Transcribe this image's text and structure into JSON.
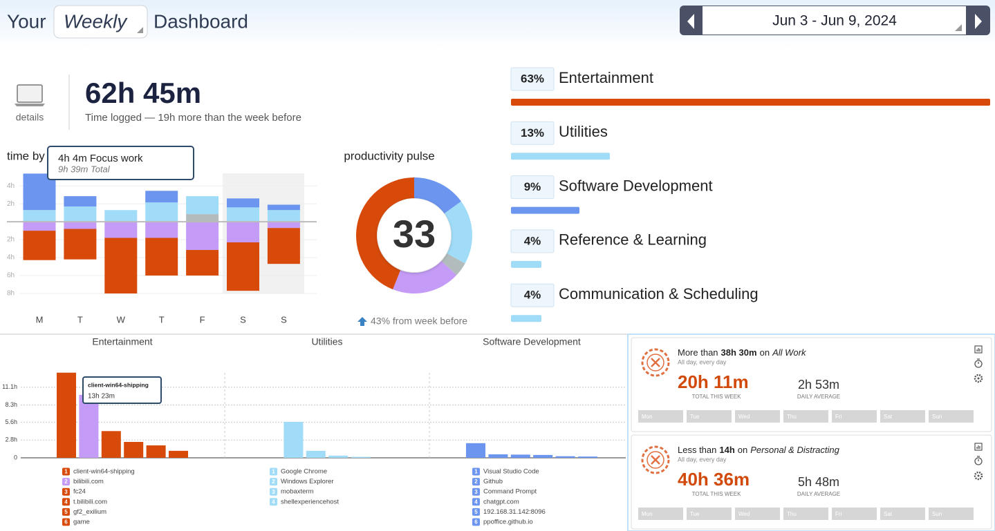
{
  "header": {
    "prefix": "Your",
    "period": "Weekly",
    "suffix": "Dashboard",
    "date_range": "Jun 3 - Jun 9, 2024"
  },
  "summary": {
    "details": "details",
    "total": "62h 45m",
    "caption": "Time logged — 19h more than the week before"
  },
  "time_by_day": {
    "title": "time by",
    "categories": [
      "M",
      "T",
      "W",
      "T",
      "F",
      "S",
      "S"
    ],
    "series": [
      {
        "color": "#b3bcbc",
        "values": [
          0,
          0,
          0,
          0,
          0.85,
          0,
          0
        ]
      },
      {
        "color": "#a0dcf8",
        "values": [
          1.3,
          1.7,
          1.3,
          2.15,
          2.0,
          1.6,
          1.3
        ]
      },
      {
        "color": "#6b95ee",
        "values": [
          4.07,
          1.15,
          0,
          1.3,
          0,
          1.0,
          0.6
        ]
      },
      {
        "color": "#c49bf6",
        "values": [
          -1.0,
          -0.8,
          -1.8,
          -1.8,
          -3.15,
          -2.3,
          -0.7
        ]
      },
      {
        "color": "#d84a0a",
        "values": [
          -3.28,
          -3.4,
          -6.2,
          -4.2,
          -2.85,
          -5.4,
          -4.0
        ]
      }
    ],
    "ylim": [
      -8,
      5.4
    ],
    "yticks": [
      {
        "value": 4,
        "label": "4h"
      },
      {
        "value": 2,
        "label": "2h"
      },
      {
        "value": -2,
        "label": "2h"
      },
      {
        "value": -4,
        "label": "4h"
      },
      {
        "value": -6,
        "label": "6h"
      },
      {
        "value": -8,
        "label": "8h"
      }
    ],
    "grid": true,
    "tooltip": {
      "title": "4h 4m Focus work",
      "subtitle": "9h 39m Total"
    }
  },
  "pulse": {
    "title": "productivity pulse",
    "value": 33,
    "values": [
      15,
      18,
      4,
      19,
      44
    ],
    "colors": [
      "#6b95ee",
      "#a0dcf8",
      "#b3bcbc",
      "#c49bf6",
      "#d84a0a"
    ],
    "change": "43% from week before"
  },
  "categories": {
    "categories": [
      "Entertainment",
      "Utilities",
      "Software Development",
      "Reference & Learning",
      "Communication & Scheduling"
    ],
    "values": [
      63,
      13,
      9,
      4,
      4
    ],
    "value_labels": [
      "63%",
      "13%",
      "9%",
      "4%",
      "4%"
    ],
    "colors": [
      "#d84a0a",
      "#a0dcf8",
      "#6b95ee",
      "#a0dcf8",
      "#a0dcf8"
    ]
  },
  "breakdown": {
    "ylim": [
      0,
      14
    ],
    "yticks": [
      {
        "value": 11.1,
        "label": "11.1h"
      },
      {
        "value": 8.3,
        "label": "8.3h"
      },
      {
        "value": 5.6,
        "label": "5.6h"
      },
      {
        "value": 2.8,
        "label": "2.8h"
      },
      0
    ],
    "panels": [
      {
        "title": "Entertainment",
        "items": [
          {
            "rank": 1,
            "name": "client-win64-shipping",
            "color": "#d84a0a",
            "value": 13.38
          },
          {
            "rank": 2,
            "name": "bilibili.com",
            "color": "#c49bf6",
            "value": 9.9
          },
          {
            "rank": 3,
            "name": "fc24",
            "color": "#d84a0a",
            "value": 4.2
          },
          {
            "rank": 4,
            "name": "t.bilibili.com",
            "color": "#d84a0a",
            "value": 2.5
          },
          {
            "rank": 5,
            "name": "gf2_exilium",
            "color": "#d84a0a",
            "value": 1.95
          },
          {
            "rank": 6,
            "name": "game",
            "color": "#d84a0a",
            "value": 1.1
          }
        ]
      },
      {
        "title": "Utilities",
        "items": [
          {
            "rank": 1,
            "name": "Google Chrome",
            "color": "#a0dcf8",
            "value": 5.65
          },
          {
            "rank": 2,
            "name": "Windows Explorer",
            "color": "#a0dcf8",
            "value": 1.1
          },
          {
            "rank": 3,
            "name": "mobaxterm",
            "color": "#a0dcf8",
            "value": 0.35
          },
          {
            "rank": 4,
            "name": "shellexperiencehost",
            "color": "#a0dcf8",
            "value": 0.15
          }
        ]
      },
      {
        "title": "Software Development",
        "items": [
          {
            "rank": 1,
            "name": "Visual Studio Code",
            "color": "#6b95ee",
            "value": 2.3
          },
          {
            "rank": 2,
            "name": "Github",
            "color": "#6b95ee",
            "value": 0.55
          },
          {
            "rank": 3,
            "name": "Command Prompt",
            "color": "#6b95ee",
            "value": 0.5
          },
          {
            "rank": 4,
            "name": "chatgpt.com",
            "color": "#6b95ee",
            "value": 0.45
          },
          {
            "rank": 5,
            "name": "192.168.31.142:8096",
            "color": "#6b95ee",
            "value": 0.25
          },
          {
            "rank": 6,
            "name": "ppoffice.github.io",
            "color": "#6b95ee",
            "value": 0.2
          }
        ]
      }
    ],
    "tooltip": {
      "name": "client-win64-shipping",
      "time": "13h 23m"
    }
  },
  "goals": {
    "days": [
      "Mon",
      "Tue",
      "Wed",
      "Thu",
      "Fri",
      "Sat",
      "Sun"
    ],
    "cards": [
      {
        "rule": "More than",
        "target": "38h 30m",
        "joiner": "on",
        "scope": "All Work",
        "schedule": "All day, every day",
        "total": "20h 11m",
        "total_label": "TOTAL THIS WEEK",
        "average": "2h 53m",
        "average_label": "DAILY AVERAGE"
      },
      {
        "rule": "Less than",
        "target": "14h",
        "joiner": "on",
        "scope": "Personal & Distracting",
        "schedule": "All day, every day",
        "total": "40h 36m",
        "total_label": "TOTAL THIS WEEK",
        "average": "5h 48m",
        "average_label": "DAILY AVERAGE"
      }
    ]
  }
}
